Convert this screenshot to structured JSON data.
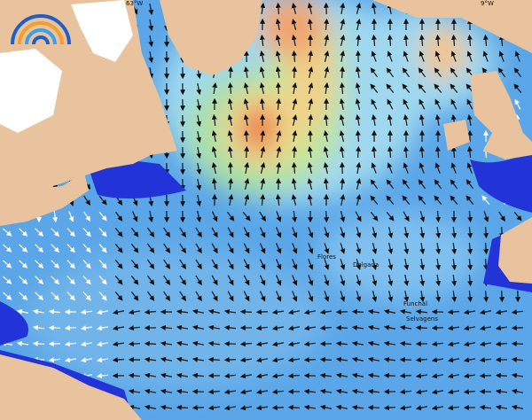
{
  "map": {
    "longitude_labels": [
      "63°W",
      "9°W"
    ],
    "place_labels": [
      "Flores",
      "Delgada",
      "Funchal",
      "Selvagens"
    ]
  }
}
